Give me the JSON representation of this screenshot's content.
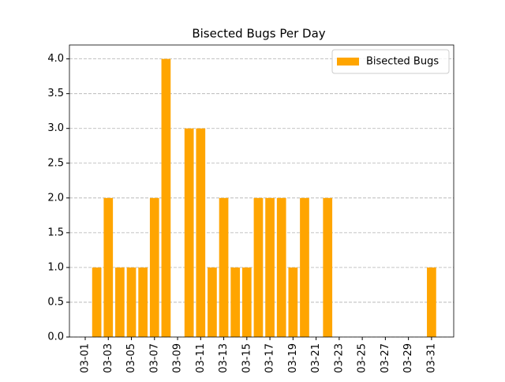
{
  "chart_data": {
    "type": "bar",
    "title": "Bisected Bugs Per Day",
    "categories": [
      "03-01",
      null,
      "03-03",
      null,
      "03-05",
      null,
      "03-07",
      null,
      "03-09",
      null,
      "03-11",
      null,
      "03-13",
      null,
      "03-15",
      null,
      "03-17",
      null,
      "03-19",
      null,
      "03-21",
      null,
      "03-23",
      null,
      "03-25",
      null,
      "03-27",
      null,
      "03-29",
      null,
      "03-31"
    ],
    "series": [
      {
        "name": "Bisected Bugs",
        "color": "#ffa500",
        "values": [
          0,
          1,
          2,
          1,
          1,
          1,
          2,
          4,
          0,
          3,
          3,
          1,
          2,
          1,
          1,
          2,
          2,
          2,
          1,
          2,
          0,
          2,
          0,
          0,
          0,
          0,
          0,
          0,
          0,
          0,
          1
        ]
      }
    ],
    "ylim": [
      0,
      4.2
    ],
    "yticks": [
      {
        "value": 0,
        "label": "0.0"
      },
      {
        "value": 0.5,
        "label": "0.5"
      },
      {
        "value": 1,
        "label": "1.0"
      },
      {
        "value": 1.5,
        "label": "1.5"
      },
      {
        "value": 2,
        "label": "2.0"
      },
      {
        "value": 2.5,
        "label": "2.5"
      },
      {
        "value": 3,
        "label": "3.0"
      },
      {
        "value": 3.5,
        "label": "3.5"
      },
      {
        "value": 4,
        "label": "4.0"
      }
    ],
    "grid": true,
    "legend": "upper right"
  }
}
